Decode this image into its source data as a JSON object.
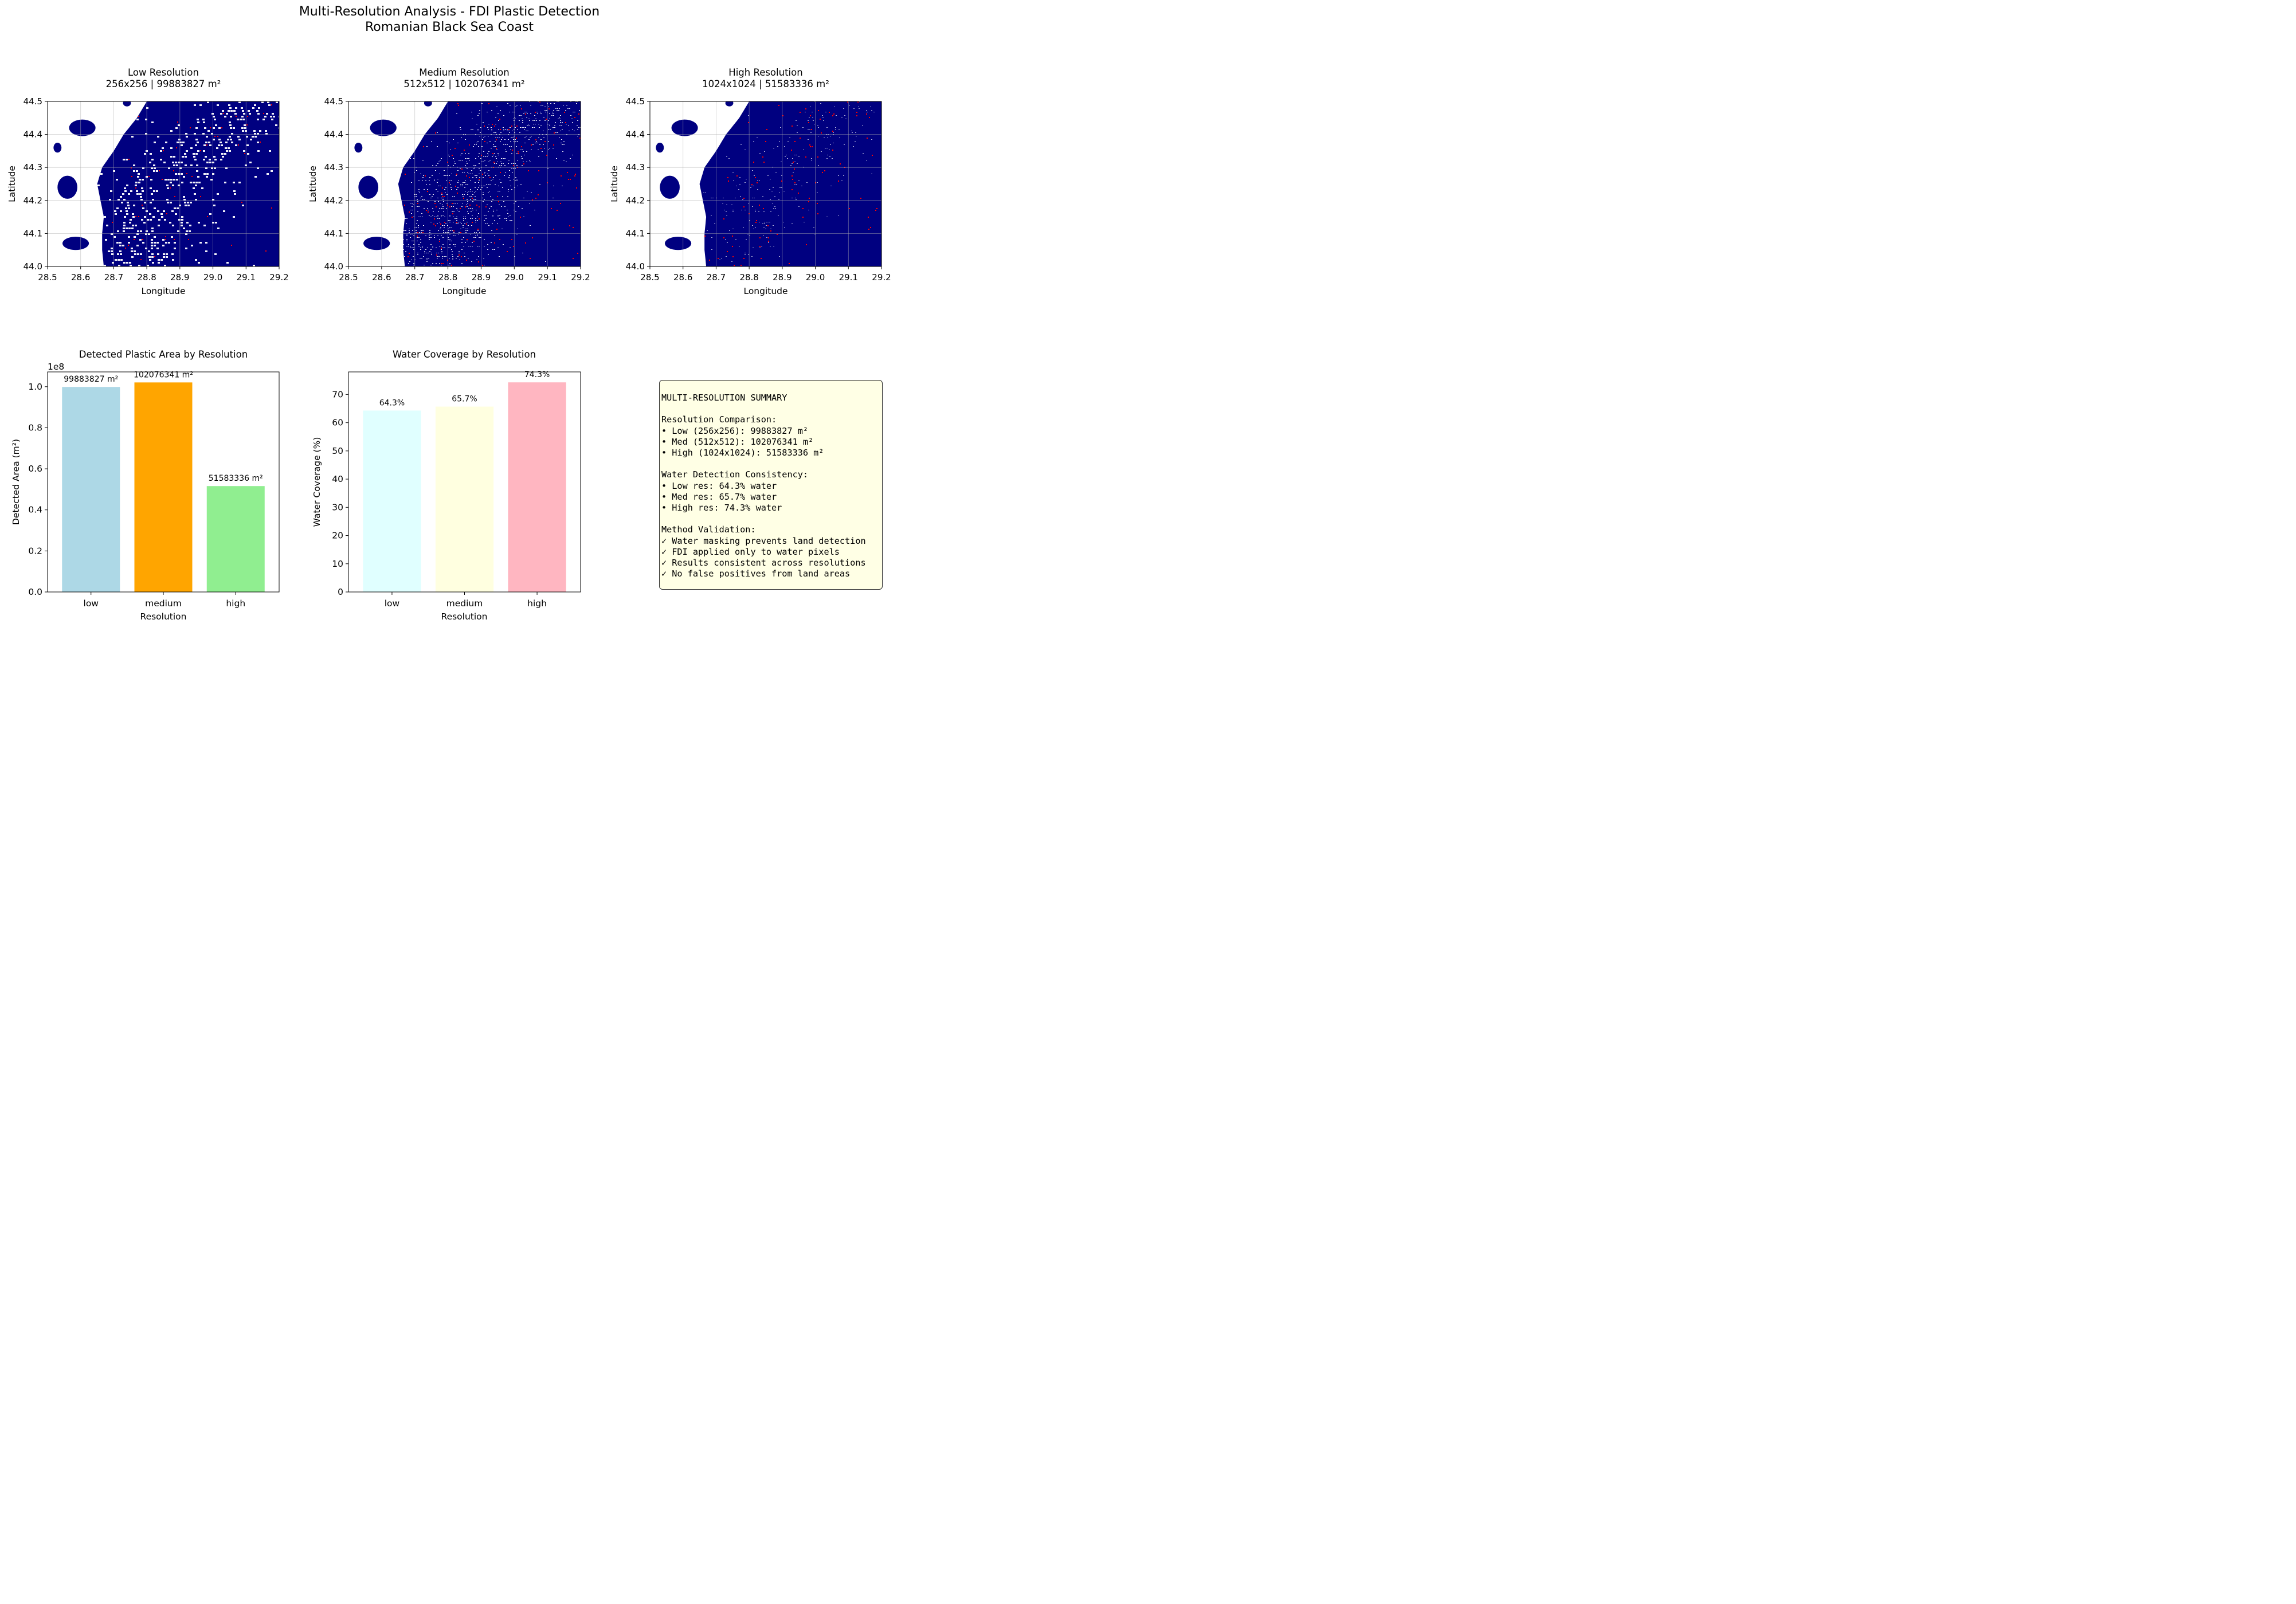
{
  "figure": {
    "title_line1": "Multi-Resolution Analysis - FDI Plastic Detection",
    "title_line2": "Romanian Black Sea Coast"
  },
  "maps": [
    {
      "title": "Low Resolution",
      "subtitle": "256x256 | 99883827 m²",
      "grid": "256x256",
      "area_m2": 99883827,
      "water_coverage_pct": 64.3
    },
    {
      "title": "Medium Resolution",
      "subtitle": "512x512 | 102076341 m²",
      "grid": "512x512",
      "area_m2": 102076341,
      "water_coverage_pct": 65.7
    },
    {
      "title": "High Resolution",
      "subtitle": "1024x1024 | 51583336 m²",
      "grid": "1024x1024",
      "area_m2": 51583336,
      "water_coverage_pct": 74.3
    }
  ],
  "map_axes": {
    "xlabel": "Longitude",
    "ylabel": "Latitude",
    "xlim": [
      28.5,
      29.2
    ],
    "ylim": [
      44.0,
      44.5
    ],
    "xticks": [
      "28.5",
      "28.6",
      "28.7",
      "28.8",
      "28.9",
      "29.0",
      "29.1",
      "29.2"
    ],
    "yticks": [
      "44.0",
      "44.1",
      "44.2",
      "44.3",
      "44.4",
      "44.5"
    ],
    "grid": true
  },
  "colors": {
    "water": "#000080",
    "land": "#ffffff",
    "plastic": "#ff0000",
    "summary_box": "#ffffe5"
  },
  "chart_data": [
    {
      "type": "bar",
      "title": "Detected Plastic Area by Resolution",
      "categories": [
        "low",
        "medium",
        "high"
      ],
      "values": [
        99883827,
        102076341,
        51583336
      ],
      "value_labels": [
        "99883827 m²",
        "102076341 m²",
        "51583336 m²"
      ],
      "bar_colors": [
        "#add8e6",
        "#ffa500",
        "#90ee90"
      ],
      "xlabel": "Resolution",
      "ylabel": "Detected Area (m²)",
      "offset_text": "1e8",
      "ylim": [
        0,
        107200000
      ],
      "ytick_values": [
        0,
        20000000,
        40000000,
        60000000,
        80000000,
        100000000
      ],
      "ytick_labels": [
        "0.0",
        "0.2",
        "0.4",
        "0.6",
        "0.8",
        "1.0"
      ]
    },
    {
      "type": "bar",
      "title": "Water Coverage by Resolution",
      "categories": [
        "low",
        "medium",
        "high"
      ],
      "values": [
        64.3,
        65.7,
        74.3
      ],
      "value_labels": [
        "64.3%",
        "65.7%",
        "74.3%"
      ],
      "bar_colors": [
        "#e0ffff",
        "#ffffe0",
        "#ffb6c1"
      ],
      "xlabel": "Resolution",
      "ylabel": "Water Coverage (%)",
      "ylim": [
        0,
        78
      ],
      "ytick_values": [
        0,
        10,
        20,
        30,
        40,
        50,
        60,
        70
      ],
      "ytick_labels": [
        "0",
        "10",
        "20",
        "30",
        "40",
        "50",
        "60",
        "70"
      ]
    }
  ],
  "summary": {
    "lines": [
      "MULTI-RESOLUTION SUMMARY",
      "",
      "Resolution Comparison:",
      "• Low (256x256): 99883827 m²",
      "• Med (512x512): 102076341 m²",
      "• High (1024x1024): 51583336 m²",
      "",
      "Water Detection Consistency:",
      "• Low res: 64.3% water",
      "• Med res: 65.7% water",
      "• High res: 74.3% water",
      "",
      "Method Validation:",
      "✓ Water masking prevents land detection",
      "✓ FDI applied only to water pixels",
      "✓ Results consistent across resolutions",
      "✓ No false positives from land areas"
    ]
  }
}
